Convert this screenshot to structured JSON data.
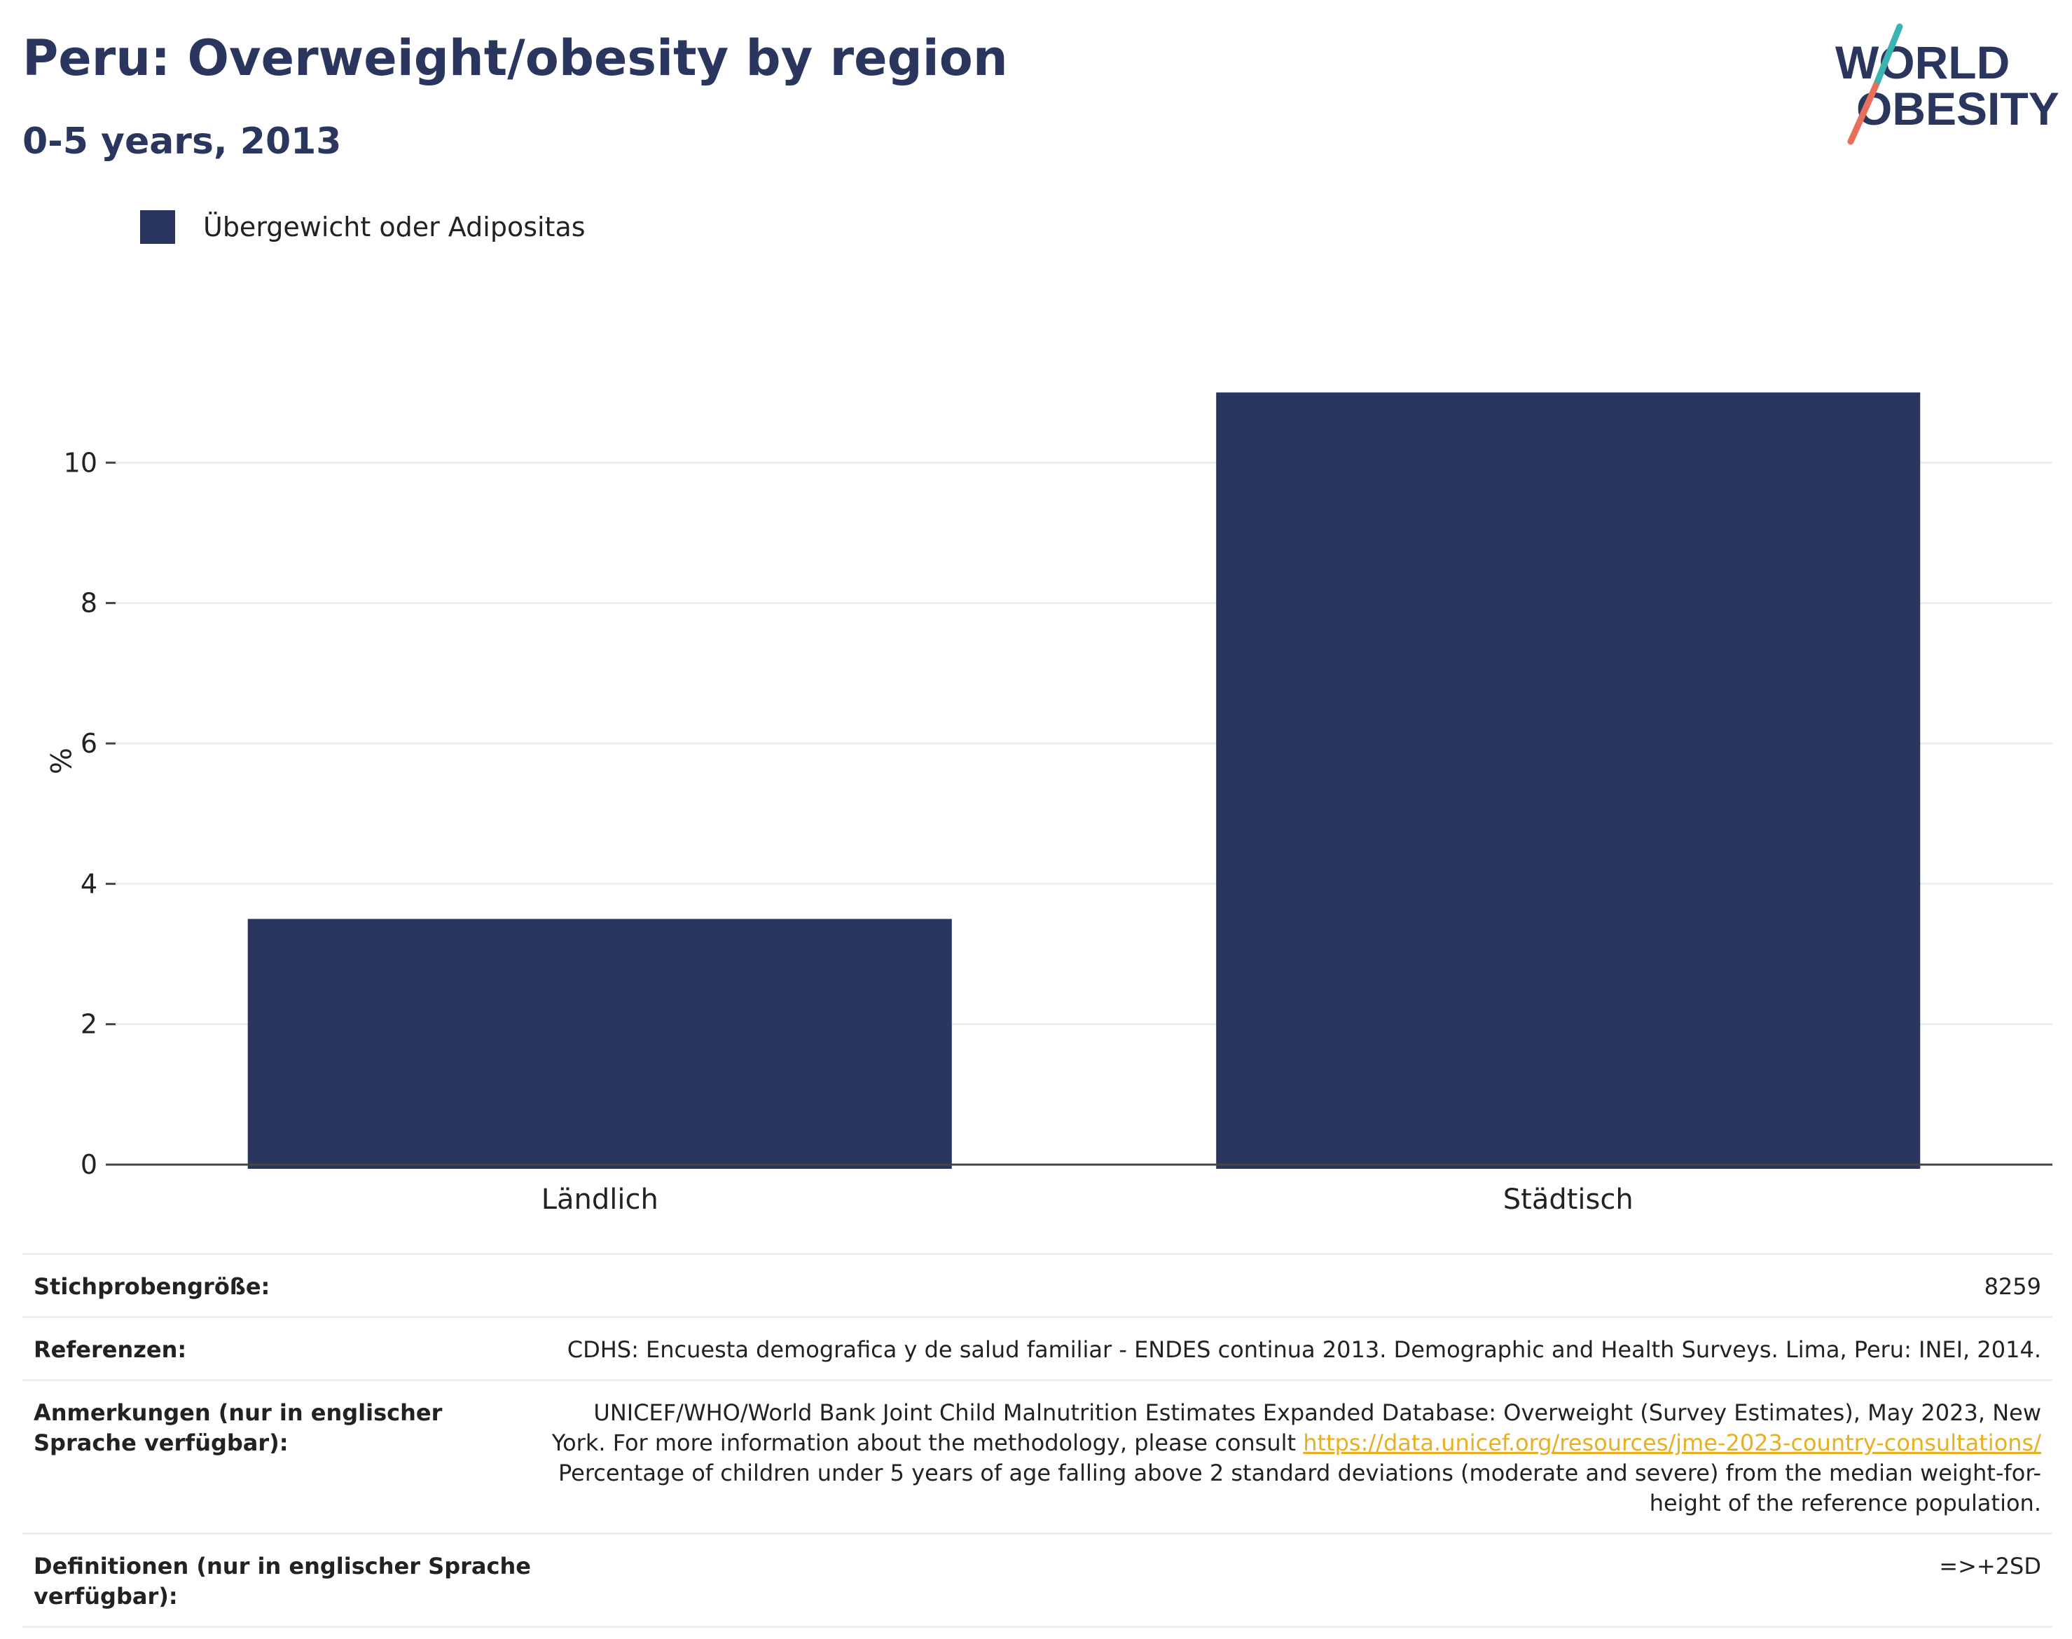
{
  "header": {
    "title": "Peru: Overweight/obesity by region",
    "subtitle": "0-5 years, 2013"
  },
  "logo": {
    "line1": "WORLD",
    "line2": "OBESITY",
    "colors": {
      "text": "#2b365f",
      "slash_teal": "#3bb3b0",
      "slash_coral": "#e8705a"
    }
  },
  "legend": {
    "items": [
      {
        "label": "Übergewicht oder Adipositas",
        "color": "#2b365f"
      }
    ]
  },
  "chart_data": {
    "type": "bar",
    "title": "Peru: Overweight/obesity by region",
    "subtitle": "0-5 years, 2013",
    "ylabel": "%",
    "xlabel": "",
    "categories": [
      "Ländlich",
      "Städtisch"
    ],
    "series": [
      {
        "name": "Übergewicht oder Adipositas",
        "values": [
          3.5,
          11.0
        ],
        "color": "#2b365f"
      }
    ],
    "ylim": [
      0,
      11.5
    ],
    "yticks": [
      0,
      2,
      4,
      6,
      8,
      10
    ],
    "grid": true,
    "legend_position": "top-left"
  },
  "meta": {
    "rows": [
      {
        "label": "Stichprobengröße:",
        "value": "8259"
      },
      {
        "label": "Referenzen:",
        "value": "CDHS: Encuesta demografica y de salud familiar - ENDES continua 2013. Demographic and Health Surveys. Lima, Peru: INEI, 2014."
      },
      {
        "label": "Anmerkungen (nur in englischer Sprache verfügbar):",
        "value_before": "UNICEF/WHO/World Bank Joint Child Malnutrition Estimates Expanded Database: Overweight (Survey Estimates), May 2023, New York. For more information about the methodology, please consult ",
        "link": "https://data.unicef.org/resources/jme-2023-country-consultations/",
        "value_after": " Percentage of children under 5 years of age falling above 2 standard deviations (moderate and severe) from the median weight-for-height of the reference population."
      },
      {
        "label": "Definitionen (nur in englischer Sprache verfügbar):",
        "value": "=>+2SD"
      }
    ]
  }
}
